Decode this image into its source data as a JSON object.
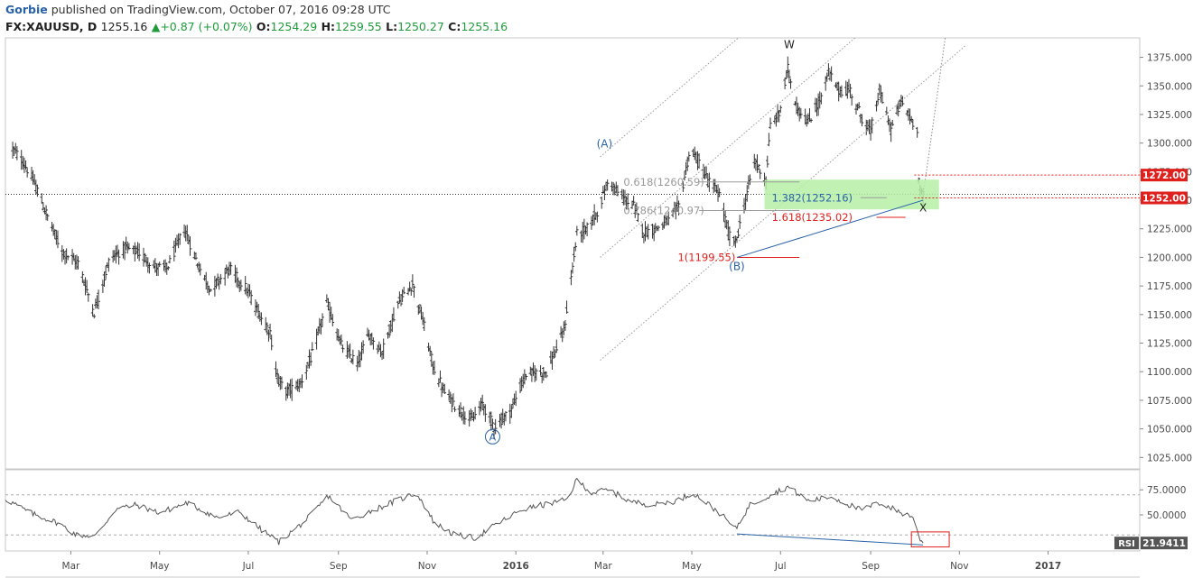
{
  "header": {
    "author": "Gorbie",
    "published_text": " published on TradingView.com, October 07, 2016 09:28 UTC",
    "symbol": "FX:XAUUSD, D",
    "last": "1255.16",
    "change_arrow": "▲",
    "change": "+0.87 (+0.07%)",
    "o_label": "O:",
    "o_value": "1254.29",
    "h_label": "H:",
    "h_value": "1259.55",
    "l_label": "L:",
    "l_value": "1250.27",
    "c_label": "C:",
    "c_value": "1255.16"
  },
  "colors": {
    "bars": "#333333",
    "axis_text": "#4a4a4a",
    "blue": "#2962a8",
    "red": "#e0201d",
    "green_zone": "#b6f0a6",
    "rsi_line": "#555555"
  },
  "chart_data": [
    {
      "type": "ohlc",
      "ylim": [
        1015,
        1392
      ],
      "yticks": [
        1025,
        1050,
        1075,
        1100,
        1125,
        1150,
        1175,
        1200,
        1225,
        1250,
        1275,
        1300,
        1325,
        1350,
        1375
      ],
      "ytick_labels": [
        "1025.000",
        "1050.000",
        "1075.000",
        "1100.000",
        "1125.000",
        "1150.000",
        "1175.000",
        "1200.000",
        "1225.000",
        "1250.000",
        "1275.000",
        "1300.000",
        "1325.000",
        "1350.000",
        "1375.000"
      ],
      "x_start": "2015-01-15",
      "x_end": "2017-03-05",
      "xticks": [
        {
          "date": "2015-03-01",
          "label": "Mar"
        },
        {
          "date": "2015-05-01",
          "label": "May"
        },
        {
          "date": "2015-07-01",
          "label": "Jul"
        },
        {
          "date": "2015-09-01",
          "label": "Sep"
        },
        {
          "date": "2015-11-01",
          "label": "Nov"
        },
        {
          "date": "2016-01-01",
          "label": "2016"
        },
        {
          "date": "2016-03-01",
          "label": "Mar"
        },
        {
          "date": "2016-05-01",
          "label": "May"
        },
        {
          "date": "2016-07-01",
          "label": "Jul"
        },
        {
          "date": "2016-09-01",
          "label": "Sep"
        },
        {
          "date": "2016-11-01",
          "label": "Nov"
        },
        {
          "date": "2017-01-01",
          "label": "2017"
        }
      ],
      "price_path": [
        [
          "2015-01-20",
          1295
        ],
        [
          "2015-01-28",
          1282
        ],
        [
          "2015-02-05",
          1262
        ],
        [
          "2015-02-14",
          1232
        ],
        [
          "2015-02-23",
          1205
        ],
        [
          "2015-03-06",
          1195
        ],
        [
          "2015-03-17",
          1152
        ],
        [
          "2015-03-28",
          1200
        ],
        [
          "2015-04-08",
          1208
        ],
        [
          "2015-04-18",
          1203
        ],
        [
          "2015-04-27",
          1192
        ],
        [
          "2015-05-06",
          1190
        ],
        [
          "2015-05-18",
          1225
        ],
        [
          "2015-05-28",
          1192
        ],
        [
          "2015-06-05",
          1172
        ],
        [
          "2015-06-18",
          1190
        ],
        [
          "2015-06-30",
          1172
        ],
        [
          "2015-07-08",
          1152
        ],
        [
          "2015-07-16",
          1135
        ],
        [
          "2015-07-20",
          1100
        ],
        [
          "2015-07-26",
          1082
        ],
        [
          "2015-08-06",
          1090
        ],
        [
          "2015-08-14",
          1115
        ],
        [
          "2015-08-24",
          1160
        ],
        [
          "2015-09-03",
          1123
        ],
        [
          "2015-09-14",
          1107
        ],
        [
          "2015-09-22",
          1133
        ],
        [
          "2015-10-01",
          1117
        ],
        [
          "2015-10-12",
          1160
        ],
        [
          "2015-10-22",
          1177
        ],
        [
          "2015-10-29",
          1145
        ],
        [
          "2015-11-05",
          1105
        ],
        [
          "2015-11-13",
          1082
        ],
        [
          "2015-11-22",
          1068
        ],
        [
          "2015-12-02",
          1058
        ],
        [
          "2015-12-09",
          1072
        ],
        [
          "2015-12-17",
          1052
        ],
        [
          "2015-12-28",
          1065
        ],
        [
          "2016-01-08",
          1098
        ],
        [
          "2016-01-22",
          1100
        ],
        [
          "2016-02-03",
          1135
        ],
        [
          "2016-02-12",
          1220
        ],
        [
          "2016-02-19",
          1225
        ],
        [
          "2016-02-26",
          1240
        ],
        [
          "2016-03-05",
          1268
        ],
        [
          "2016-03-12",
          1255
        ],
        [
          "2016-03-22",
          1245
        ],
        [
          "2016-03-29",
          1222
        ],
        [
          "2016-04-06",
          1225
        ],
        [
          "2016-04-15",
          1232
        ],
        [
          "2016-04-22",
          1245
        ],
        [
          "2016-04-29",
          1290
        ],
        [
          "2016-05-04",
          1288
        ],
        [
          "2016-05-12",
          1268
        ],
        [
          "2016-05-20",
          1255
        ],
        [
          "2016-05-26",
          1222
        ],
        [
          "2016-05-31",
          1212
        ],
        [
          "2016-06-06",
          1245
        ],
        [
          "2016-06-13",
          1285
        ],
        [
          "2016-06-21",
          1268
        ],
        [
          "2016-06-24",
          1315
        ],
        [
          "2016-06-30",
          1325
        ],
        [
          "2016-07-06",
          1365
        ],
        [
          "2016-07-12",
          1332
        ],
        [
          "2016-07-20",
          1318
        ],
        [
          "2016-07-29",
          1340
        ],
        [
          "2016-08-03",
          1362
        ],
        [
          "2016-08-10",
          1346
        ],
        [
          "2016-08-18",
          1346
        ],
        [
          "2016-08-26",
          1322
        ],
        [
          "2016-09-01",
          1310
        ],
        [
          "2016-09-07",
          1346
        ],
        [
          "2016-09-15",
          1312
        ],
        [
          "2016-09-22",
          1337
        ],
        [
          "2016-09-28",
          1322
        ],
        [
          "2016-10-03",
          1313
        ],
        [
          "2016-10-04",
          1268
        ],
        [
          "2016-10-06",
          1254
        ],
        [
          "2016-10-07",
          1255
        ]
      ],
      "annotations": {
        "wave_labels": [
          {
            "text": "A",
            "date": "2015-12-16",
            "price": 1040,
            "circled": true,
            "color": "#2962a8"
          },
          {
            "text": "(A)",
            "date": "2016-03-02",
            "price": 1296,
            "color": "#2962a8"
          },
          {
            "text": "(B)",
            "date": "2016-06-01",
            "price": 1189,
            "color": "#2962a8"
          },
          {
            "text": "W",
            "date": "2016-07-07",
            "price": 1383,
            "color": "#222222"
          },
          {
            "text": "X",
            "date": "2016-10-07",
            "price": 1240,
            "color": "#222222"
          }
        ],
        "fib_levels": [
          {
            "text": "0.618(1260.59)",
            "price": 1266,
            "color": "#9a9a9a"
          },
          {
            "text": "0.786(1240.97)",
            "price": 1241,
            "color": "#9a9a9a"
          },
          {
            "text": "1(1199.55)",
            "price": 1200,
            "color": "#e0201d"
          },
          {
            "text": "1.382(1252.16)",
            "price": 1252.16,
            "color": "#2962a8"
          },
          {
            "text": "1.618(1235.02)",
            "price": 1235,
            "color": "#e0201d"
          }
        ],
        "price_badges": [
          {
            "text": "1272.00",
            "price": 1272
          },
          {
            "text": "1252.00",
            "price": 1252
          }
        ],
        "last_price": 1255.16
      }
    },
    {
      "type": "line",
      "name": "RSI",
      "label": "RSI",
      "last_value": "21.9411",
      "ylim": [
        14,
        95
      ],
      "yticks": [
        50,
        75
      ],
      "ytick_labels": [
        "50.0000",
        "75.0000"
      ],
      "levels": [
        70,
        30
      ],
      "values": [
        [
          "2015-01-15",
          66
        ],
        [
          "2015-02-01",
          52
        ],
        [
          "2015-02-20",
          42
        ],
        [
          "2015-03-05",
          30
        ],
        [
          "2015-03-18",
          29
        ],
        [
          "2015-04-01",
          56
        ],
        [
          "2015-04-15",
          60
        ],
        [
          "2015-05-01",
          52
        ],
        [
          "2015-05-20",
          62
        ],
        [
          "2015-06-10",
          47
        ],
        [
          "2015-06-25",
          53
        ],
        [
          "2015-07-10",
          35
        ],
        [
          "2015-07-22",
          23
        ],
        [
          "2015-08-10",
          45
        ],
        [
          "2015-08-25",
          69
        ],
        [
          "2015-09-10",
          45
        ],
        [
          "2015-09-25",
          55
        ],
        [
          "2015-10-14",
          66
        ],
        [
          "2015-10-25",
          72
        ],
        [
          "2015-11-06",
          42
        ],
        [
          "2015-11-20",
          30
        ],
        [
          "2015-12-04",
          27
        ],
        [
          "2015-12-18",
          40
        ],
        [
          "2016-01-05",
          55
        ],
        [
          "2016-01-20",
          60
        ],
        [
          "2016-02-05",
          65
        ],
        [
          "2016-02-12",
          85
        ],
        [
          "2016-02-22",
          72
        ],
        [
          "2016-03-05",
          75
        ],
        [
          "2016-03-20",
          63
        ],
        [
          "2016-04-05",
          60
        ],
        [
          "2016-04-20",
          64
        ],
        [
          "2016-05-02",
          72
        ],
        [
          "2016-05-20",
          52
        ],
        [
          "2016-05-31",
          36
        ],
        [
          "2016-06-10",
          60
        ],
        [
          "2016-06-24",
          70
        ],
        [
          "2016-07-06",
          78
        ],
        [
          "2016-07-20",
          64
        ],
        [
          "2016-08-05",
          68
        ],
        [
          "2016-08-25",
          55
        ],
        [
          "2016-09-08",
          62
        ],
        [
          "2016-09-22",
          52
        ],
        [
          "2016-10-01",
          48
        ],
        [
          "2016-10-04",
          28
        ],
        [
          "2016-10-07",
          21.94
        ]
      ],
      "divergence_line": {
        "from": [
          "2016-06-01",
          31
        ],
        "to": [
          "2016-10-07",
          20
        ]
      }
    }
  ]
}
